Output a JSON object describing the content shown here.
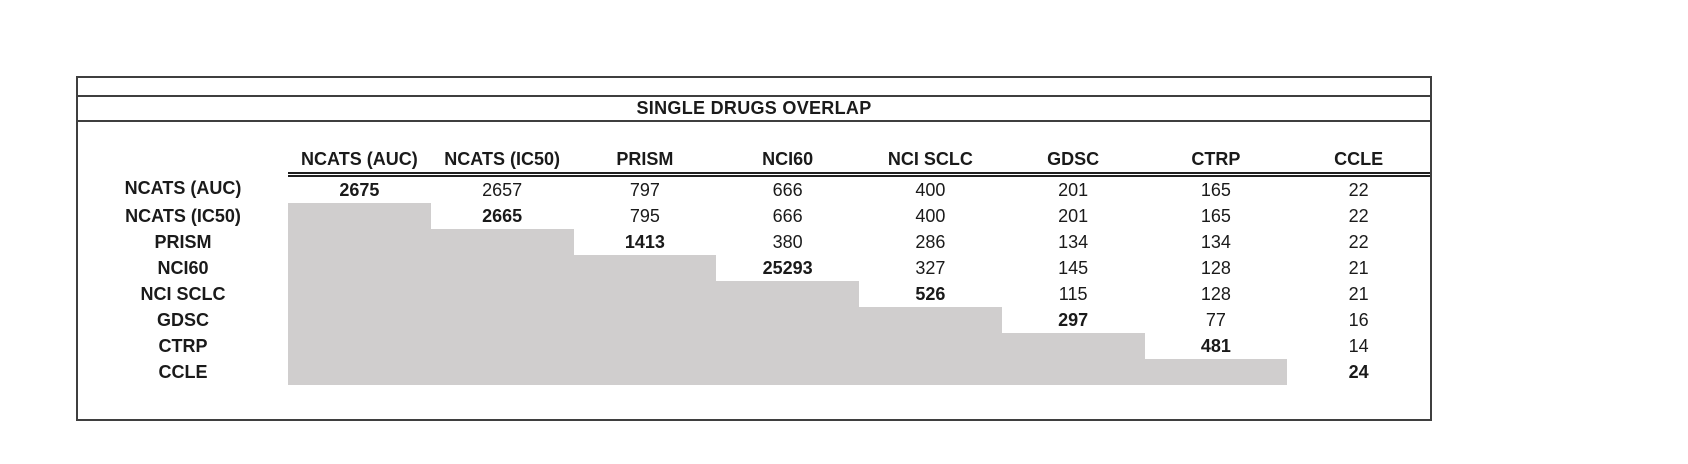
{
  "chart_data": {
    "type": "table",
    "title": "SINGLE DRUGS OVERLAP",
    "columns": [
      "NCATS (AUC)",
      "NCATS (IC50)",
      "PRISM",
      "NCI60",
      "NCI SCLC",
      "GDSC",
      "CTRP",
      "CCLE"
    ],
    "row_labels": [
      "NCATS (AUC)",
      "NCATS (IC50)",
      "PRISM",
      "NCI60",
      "NCI SCLC",
      "GDSC",
      "CTRP",
      "CCLE"
    ],
    "rows": [
      [
        2675,
        2657,
        797,
        666,
        400,
        201,
        165,
        22
      ],
      [
        null,
        2665,
        795,
        666,
        400,
        201,
        165,
        22
      ],
      [
        null,
        null,
        1413,
        380,
        286,
        134,
        134,
        22
      ],
      [
        null,
        null,
        null,
        25293,
        327,
        145,
        128,
        21
      ],
      [
        null,
        null,
        null,
        null,
        526,
        115,
        128,
        21
      ],
      [
        null,
        null,
        null,
        null,
        null,
        297,
        77,
        16
      ],
      [
        null,
        null,
        null,
        null,
        null,
        null,
        481,
        14
      ],
      [
        null,
        null,
        null,
        null,
        null,
        null,
        null,
        24
      ]
    ],
    "layout_hints": {
      "diagonal_values_bold": true,
      "lower_triangle_shaded_empty": true,
      "header_underline": "double",
      "grid": "off",
      "legend_position": "none"
    }
  },
  "colors": {
    "shade": "#d0cece",
    "border": "#3f3f3f",
    "line": "#1f1f1f",
    "text": "#1a1a1a",
    "background": "#ffffff"
  }
}
